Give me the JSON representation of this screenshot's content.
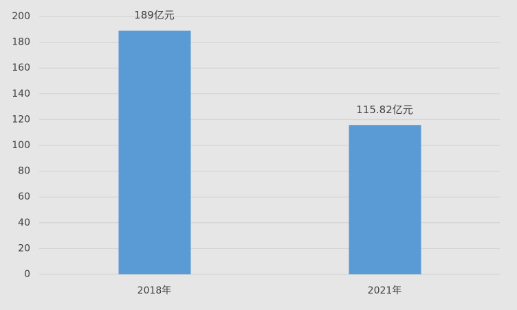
{
  "chart_data": {
    "type": "bar",
    "categories": [
      "2018年",
      "2021年"
    ],
    "values": [
      189,
      115.82
    ],
    "value_labels": [
      "189亿元",
      "115.82亿元"
    ],
    "color": "#5b9bd5",
    "ylim": [
      0,
      200
    ],
    "yticks": [
      0,
      20,
      40,
      60,
      80,
      100,
      120,
      140,
      160,
      180,
      200
    ],
    "grid": true
  }
}
